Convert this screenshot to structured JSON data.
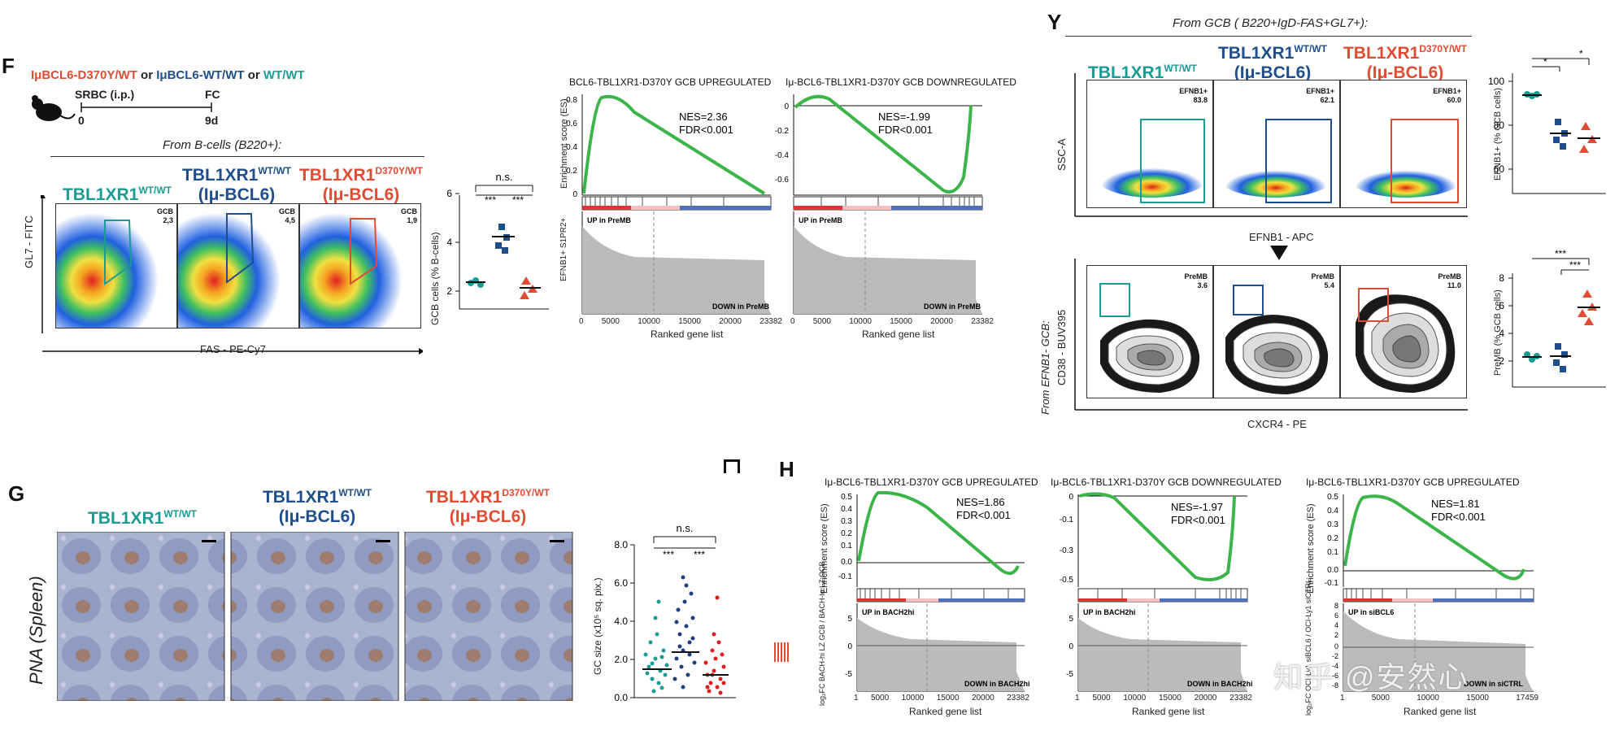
{
  "panels": {
    "F": {
      "letter": "F",
      "genotypes": {
        "mut": "IμBCL6-D370Y/WT",
        "or1": " or ",
        "wt_bcl6": "IμBCL6-WT/WT",
        "or2": " or ",
        "wt": "WT/WT"
      },
      "timeline": {
        "treatment": "SRBC (i.p.)",
        "readout": "FC",
        "t0": "0",
        "t1": "9d"
      },
      "from_label": "From B-cells (B220+):",
      "headers": [
        {
          "main": "TBL1XR1",
          "sup": "WT/WT",
          "sub": ""
        },
        {
          "main": "TBL1XR1",
          "sup": "WT/WT",
          "sub": "(Iμ-BCL6)"
        },
        {
          "main": "TBL1XR1",
          "sup": "D370Y/WT",
          "sub": "(Iμ-BCL6)"
        }
      ],
      "gates": [
        {
          "name": "GCB",
          "value": "2,3"
        },
        {
          "name": "GCB",
          "value": "4,5"
        },
        {
          "name": "GCB",
          "value": "1,9"
        }
      ],
      "y_axis": "GL7 - FITC",
      "x_axis": "FAS - PE-Cy7",
      "dot_plot": {
        "ylabel": "GCB cells (% B-cells)",
        "yticks": [
          "2",
          "4",
          "6"
        ],
        "ns": "n.s.",
        "sig1": "***",
        "sig2": "***"
      }
    },
    "gsea_top": [
      {
        "title": "BCL6-TBL1XR1-D370Y GCB UPREGULATED",
        "ylabel": "Enrichment score (ES)",
        "ytick_labels": [
          "0.8",
          "0.6",
          "0.4",
          "0.2",
          "0"
        ],
        "nes": "NES=2.36",
        "fdr": "FDR<0.001",
        "up": "UP in PreMB",
        "down": "DOWN in PreMB",
        "xticks": [
          "0",
          "5000",
          "10000",
          "15000",
          "20000",
          "23382"
        ],
        "xlabel": "Ranked gene list",
        "side_label": "EFNB1+ S1PR2+"
      },
      {
        "title": "Iμ-BCL6-TBL1XR1-D370Y GCB DOWNREGULATED",
        "ytick_labels": [
          "0",
          "-0.2",
          "-0.4",
          "-0.6"
        ],
        "nes": "NES=-1.99",
        "fdr": "FDR<0.001",
        "up": "UP in PreMB",
        "down": "DOWN in PreMB",
        "xticks": [
          "0",
          "5000",
          "10000",
          "15000",
          "20000",
          "23382"
        ],
        "xlabel": "Ranked gene list"
      }
    ],
    "Y": {
      "letter": "Y",
      "from_label": "From GCB ( B220+IgD-FAS+GL7+):",
      "headers": [
        {
          "main": "TBL1XR1",
          "sup": "WT/WT",
          "sub": ""
        },
        {
          "main": "TBL1XR1",
          "sup": "WT/WT",
          "sub": "(Iμ-BCL6)"
        },
        {
          "main": "TBL1XR1",
          "sup": "D370Y/WT",
          "sub": "(Iμ-BCL6)"
        }
      ],
      "efnb1_gates": [
        {
          "name": "EFNB1+",
          "value": "83.8"
        },
        {
          "name": "EFNB1+",
          "value": "62.1"
        },
        {
          "name": "EFNB1+",
          "value": "60.0"
        }
      ],
      "premb_gates": [
        {
          "name": "PreMB",
          "value": "3.6"
        },
        {
          "name": "PreMB",
          "value": "5.4"
        },
        {
          "name": "PreMB",
          "value": "11.0"
        }
      ],
      "top_y": "SSC-A",
      "top_x": "EFNB1 - APC",
      "bottom_y": "CD38 - BUV395",
      "bottom_y_from": "From EFNB1- GCB:",
      "bottom_x": "CXCR4 - PE",
      "dot1": {
        "ylabel": "EFNB1+ (% GCB cells)",
        "yticks": [
          "60",
          "80",
          "100"
        ],
        "sig1": "*",
        "sig2": "*"
      },
      "dot2": {
        "ylabel": "PreMB (% GCB cells)",
        "yticks": [
          "2",
          "4",
          "6",
          "8"
        ],
        "sig1": "***",
        "sig2": "***"
      }
    },
    "G": {
      "letter": "G",
      "headers": [
        {
          "main": "TBL1XR1",
          "sup": "WT/WT",
          "sub": ""
        },
        {
          "main": "TBL1XR1",
          "sup": "WT/WT",
          "sub": "(Iμ-BCL6)"
        },
        {
          "main": "TBL1XR1",
          "sup": "D370Y/WT",
          "sub": "(Iμ-BCL6)"
        }
      ],
      "side_label": "PNA (Spleen)",
      "dot_plot": {
        "ylabel": "GC size (x10⁵ sq. pix.)",
        "yticks": [
          "0.0",
          "2.0",
          "4.0",
          "6.0",
          "8.0"
        ],
        "ns": "n.s.",
        "sig1": "***",
        "sig2": "***"
      }
    },
    "H": {
      "letter": "H",
      "plots": [
        {
          "title": "Iμ-BCL6-TBL1XR1-D370Y GCB UPREGULATED",
          "ylabel": "Enrichment score (ES)",
          "ytick_labels": [
            "0.5",
            "0.4",
            "0.3",
            "0.2",
            "0.1",
            "0.0",
            "-0.1"
          ],
          "nes": "NES=1.86",
          "fdr": "FDR<0.001",
          "up": "UP in BACH2hi",
          "down": "DOWN in BACH2hi",
          "xticks": [
            "1",
            "5000",
            "10000",
            "15000",
            "20000",
            "23382"
          ],
          "xlabel": "Ranked gene list",
          "side_label": "log₂FC BACH-hi LZ GCB / BACH-lo LZ GCB",
          "yticks2": [
            "5",
            "0",
            "-5"
          ]
        },
        {
          "title": "Iμ-BCL6-TBL1XR1-D370Y GCB DOWNREGULATED",
          "ytick_labels": [
            "0",
            "-0.1",
            "-0.3",
            "-0.5"
          ],
          "nes": "NES=-1.97",
          "fdr": "FDR<0.001",
          "up": "UP in BACH2hi",
          "down": "DOWN in BACH2hi",
          "xticks": [
            "1",
            "5000",
            "10000",
            "15000",
            "20000",
            "23382"
          ],
          "xlabel": "Ranked gene list",
          "yticks2": [
            "5",
            "0",
            "-5"
          ]
        },
        {
          "title": "Iμ-BCL6-TBL1XR1-D370Y GCB UPREGULATED",
          "ylabel": "Enrichment score (ES)",
          "ytick_labels": [
            "0.5",
            "0.4",
            "0.3",
            "0.2",
            "0.1",
            "0.0",
            "-0.1"
          ],
          "nes": "NES=1.81",
          "fdr": "FDR<0.001",
          "up": "UP in siBCL6",
          "down": "DOWN in siCTRL",
          "xticks": [
            "1",
            "5000",
            "10000",
            "15000",
            "17459"
          ],
          "xlabel": "Ranked gene list",
          "side_label": "log₂FC OCI-Ly1 siBCL6 / OCI-Ly1 siCTRL",
          "yticks2": [
            "8",
            "6",
            "4",
            "2",
            "0",
            "-2",
            "-4",
            "-6",
            "-8"
          ]
        }
      ]
    }
  },
  "watermark": "知乎 @安然心",
  "colors": {
    "teal": "#1a9b94",
    "blue": "#1f4e8c",
    "red": "#e04b33",
    "green": "#3bb54a"
  }
}
